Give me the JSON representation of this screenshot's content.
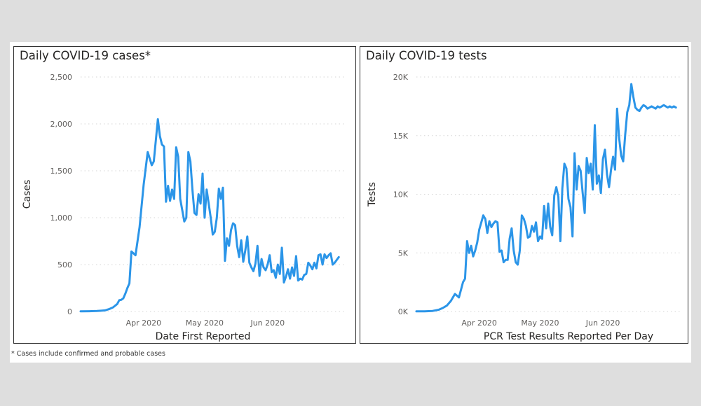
{
  "footnote": "* Cases include confirmed and probable cases",
  "colors": {
    "line": "#2b95e8",
    "grid": "#d6d6d6"
  },
  "chart_data": [
    {
      "type": "line",
      "title": "Daily COVID-19 cases*",
      "xlabel": "Date First Reported",
      "ylabel": "Cases",
      "ylim": [
        0,
        2500
      ],
      "yticks": [
        0,
        500,
        1000,
        1500,
        2000,
        2500
      ],
      "ytick_labels": [
        "0",
        "500",
        "1,000",
        "1,500",
        "2,000",
        "2,500"
      ],
      "xlim": [
        "2020-03-01",
        "2020-07-09"
      ],
      "xticks": [
        "2020-04-01",
        "2020-05-01",
        "2020-06-01"
      ],
      "xtick_labels": [
        "Apr 2020",
        "May 2020",
        "Jun 2020"
      ],
      "grid": true,
      "series": [
        {
          "x": [
            "2020-03-01",
            "2020-03-05",
            "2020-03-09",
            "2020-03-11",
            "2020-03-13",
            "2020-03-15",
            "2020-03-17",
            "2020-03-19",
            "2020-03-20",
            "2020-03-21",
            "2020-03-22",
            "2020-03-23",
            "2020-03-24",
            "2020-03-25",
            "2020-03-26",
            "2020-03-28",
            "2020-03-30",
            "2020-04-01",
            "2020-04-03",
            "2020-04-05",
            "2020-04-06",
            "2020-04-08",
            "2020-04-09",
            "2020-04-10",
            "2020-04-11",
            "2020-04-12",
            "2020-04-13",
            "2020-04-14",
            "2020-04-15",
            "2020-04-16",
            "2020-04-17",
            "2020-04-18",
            "2020-04-19",
            "2020-04-21",
            "2020-04-22",
            "2020-04-23",
            "2020-04-24",
            "2020-04-25",
            "2020-04-26",
            "2020-04-27",
            "2020-04-28",
            "2020-04-29",
            "2020-04-30",
            "2020-05-01",
            "2020-05-02",
            "2020-05-03",
            "2020-05-04",
            "2020-05-05",
            "2020-05-06",
            "2020-05-07",
            "2020-05-08",
            "2020-05-09",
            "2020-05-10",
            "2020-05-11",
            "2020-05-12",
            "2020-05-13",
            "2020-05-14",
            "2020-05-15",
            "2020-05-16",
            "2020-05-17",
            "2020-05-18",
            "2020-05-19",
            "2020-05-20",
            "2020-05-21",
            "2020-05-22",
            "2020-05-23",
            "2020-05-24",
            "2020-05-25",
            "2020-05-26",
            "2020-05-27",
            "2020-05-28",
            "2020-05-29",
            "2020-05-30",
            "2020-05-31",
            "2020-06-01",
            "2020-06-02",
            "2020-06-03",
            "2020-06-04",
            "2020-06-05",
            "2020-06-06",
            "2020-06-07",
            "2020-06-08",
            "2020-06-09",
            "2020-06-10",
            "2020-06-11",
            "2020-06-12",
            "2020-06-13",
            "2020-06-14",
            "2020-06-15",
            "2020-06-16",
            "2020-06-17",
            "2020-06-18",
            "2020-06-19",
            "2020-06-20",
            "2020-06-21",
            "2020-06-22",
            "2020-06-23",
            "2020-06-24",
            "2020-06-25",
            "2020-06-26",
            "2020-06-27",
            "2020-06-28",
            "2020-06-29",
            "2020-06-30",
            "2020-07-01",
            "2020-07-02",
            "2020-07-03",
            "2020-07-04",
            "2020-07-05",
            "2020-07-06"
          ],
          "y": [
            2,
            3,
            5,
            8,
            12,
            25,
            45,
            80,
            120,
            125,
            140,
            190,
            250,
            300,
            640,
            600,
            900,
            1350,
            1700,
            1560,
            1600,
            2050,
            1870,
            1780,
            1760,
            1170,
            1340,
            1180,
            1300,
            1200,
            1750,
            1650,
            1200,
            960,
            1000,
            1700,
            1600,
            1300,
            1050,
            1030,
            1250,
            1150,
            1470,
            1000,
            1300,
            1150,
            1000,
            820,
            850,
            1000,
            1310,
            1200,
            1320,
            540,
            780,
            700,
            870,
            940,
            920,
            700,
            580,
            760,
            530,
            650,
            800,
            520,
            470,
            430,
            510,
            700,
            380,
            560,
            470,
            440,
            500,
            600,
            420,
            440,
            360,
            500,
            400,
            680,
            310,
            370,
            450,
            350,
            470,
            380,
            590,
            330,
            350,
            340,
            390,
            400,
            520,
            490,
            450,
            520,
            460,
            600,
            610,
            500,
            610,
            570,
            600,
            620,
            500,
            520,
            550,
            580
          ]
        }
      ]
    },
    {
      "type": "line",
      "title": "Daily COVID-19 tests",
      "xlabel": "PCR Test Results Reported Per Day",
      "ylabel": "Tests",
      "ylim": [
        0,
        20000
      ],
      "yticks": [
        0,
        5000,
        10000,
        15000,
        20000
      ],
      "ytick_labels": [
        "0K",
        "5K",
        "10K",
        "15K",
        "20K"
      ],
      "xlim": [
        "2020-03-01",
        "2020-07-09"
      ],
      "xticks": [
        "2020-04-01",
        "2020-05-01",
        "2020-06-01"
      ],
      "xtick_labels": [
        "Apr 2020",
        "May 2020",
        "Jun 2020"
      ],
      "grid": true,
      "series": [
        {
          "x": [
            "2020-03-01",
            "2020-03-05",
            "2020-03-09",
            "2020-03-12",
            "2020-03-14",
            "2020-03-16",
            "2020-03-18",
            "2020-03-20",
            "2020-03-22",
            "2020-03-24",
            "2020-03-25",
            "2020-03-26",
            "2020-03-27",
            "2020-03-28",
            "2020-03-29",
            "2020-03-30",
            "2020-03-31",
            "2020-04-01",
            "2020-04-02",
            "2020-04-03",
            "2020-04-04",
            "2020-04-05",
            "2020-04-06",
            "2020-04-07",
            "2020-04-08",
            "2020-04-09",
            "2020-04-10",
            "2020-04-11",
            "2020-04-12",
            "2020-04-13",
            "2020-04-14",
            "2020-04-15",
            "2020-04-16",
            "2020-04-17",
            "2020-04-18",
            "2020-04-19",
            "2020-04-20",
            "2020-04-21",
            "2020-04-22",
            "2020-04-23",
            "2020-04-24",
            "2020-04-25",
            "2020-04-26",
            "2020-04-27",
            "2020-04-28",
            "2020-04-29",
            "2020-04-30",
            "2020-05-01",
            "2020-05-02",
            "2020-05-03",
            "2020-05-04",
            "2020-05-05",
            "2020-05-06",
            "2020-05-07",
            "2020-05-08",
            "2020-05-09",
            "2020-05-10",
            "2020-05-11",
            "2020-05-12",
            "2020-05-13",
            "2020-05-14",
            "2020-05-15",
            "2020-05-16",
            "2020-05-17",
            "2020-05-18",
            "2020-05-19",
            "2020-05-20",
            "2020-05-21",
            "2020-05-22",
            "2020-05-23",
            "2020-05-24",
            "2020-05-25",
            "2020-05-26",
            "2020-05-27",
            "2020-05-28",
            "2020-05-29",
            "2020-05-30",
            "2020-05-31",
            "2020-06-01",
            "2020-06-02",
            "2020-06-03",
            "2020-06-04",
            "2020-06-05",
            "2020-06-06",
            "2020-06-07",
            "2020-06-08",
            "2020-06-09",
            "2020-06-10",
            "2020-06-11",
            "2020-06-12",
            "2020-06-13",
            "2020-06-14",
            "2020-06-15",
            "2020-06-16",
            "2020-06-17",
            "2020-06-18",
            "2020-06-19",
            "2020-06-20",
            "2020-06-21",
            "2020-06-22",
            "2020-06-23",
            "2020-06-24",
            "2020-06-25",
            "2020-06-26",
            "2020-06-27",
            "2020-06-28",
            "2020-06-29",
            "2020-06-30",
            "2020-07-01",
            "2020-07-02",
            "2020-07-03",
            "2020-07-04",
            "2020-07-05",
            "2020-07-06",
            "2020-07-07"
          ],
          "y": [
            10,
            20,
            50,
            150,
            300,
            500,
            900,
            1500,
            1200,
            2500,
            2800,
            6000,
            5000,
            5600,
            4700,
            5200,
            5900,
            7000,
            7600,
            8200,
            7900,
            6700,
            7700,
            7200,
            7500,
            7700,
            7600,
            5100,
            5200,
            4200,
            4400,
            4400,
            6200,
            7100,
            5200,
            4200,
            4000,
            5200,
            8200,
            7900,
            7300,
            6300,
            6400,
            7300,
            6800,
            7600,
            6000,
            6400,
            6200,
            9000,
            7100,
            9200,
            7200,
            6500,
            9900,
            10600,
            9800,
            6000,
            10500,
            12600,
            12200,
            9600,
            8900,
            6400,
            13500,
            10400,
            12400,
            12000,
            10100,
            8400,
            13100,
            11800,
            12600,
            10400,
            15900,
            10900,
            11600,
            10100,
            13000,
            13800,
            11700,
            10600,
            12100,
            13200,
            12100,
            17300,
            14800,
            13300,
            12800,
            15100,
            17000,
            17600,
            19400,
            18300,
            17400,
            17200,
            17100,
            17400,
            17600,
            17500,
            17300,
            17400,
            17500,
            17400,
            17300,
            17500,
            17400,
            17500,
            17600,
            17500,
            17400,
            17500,
            17400,
            17500,
            17400
          ]
        }
      ]
    }
  ]
}
